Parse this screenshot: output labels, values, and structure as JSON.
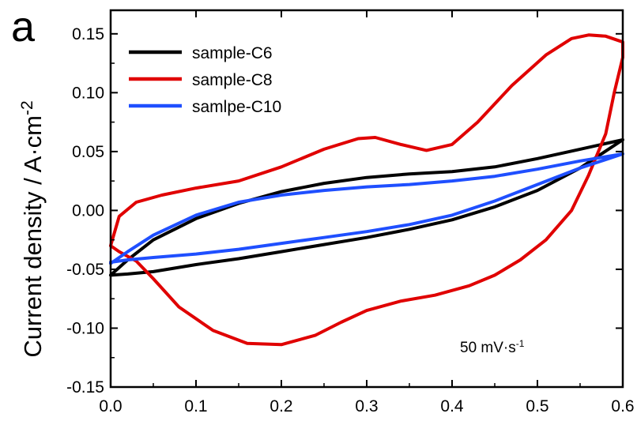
{
  "chart_data": {
    "type": "line",
    "panel_label": "a",
    "title": "",
    "xlabel": "",
    "ylabel": "Current density / A·cm",
    "ylabel_superscript": "-2",
    "xlim": [
      0.0,
      0.6
    ],
    "ylim": [
      -0.15,
      0.17
    ],
    "x_ticks": [
      0.0,
      0.1,
      0.2,
      0.3,
      0.4,
      0.5,
      0.6
    ],
    "x_tick_labels": [
      "0.0",
      "0.1",
      "0.2",
      "0.3",
      "0.4",
      "0.5",
      "0.6"
    ],
    "y_ticks": [
      -0.15,
      -0.1,
      -0.05,
      0.0,
      0.05,
      0.1,
      0.15
    ],
    "y_tick_labels": [
      "-0.15",
      "-0.10",
      "-0.05",
      "0.00",
      "0.05",
      "0.10",
      "0.15"
    ],
    "grid": false,
    "legend_position": "top-left",
    "annotation": {
      "text": "50 mV·s",
      "superscript": "-1"
    },
    "series": [
      {
        "name": "sample-C6",
        "color": "#000000",
        "x": [
          0.0,
          0.02,
          0.05,
          0.1,
          0.15,
          0.2,
          0.25,
          0.3,
          0.35,
          0.4,
          0.45,
          0.5,
          0.55,
          0.6,
          0.55,
          0.5,
          0.45,
          0.4,
          0.35,
          0.3,
          0.25,
          0.2,
          0.15,
          0.1,
          0.05,
          0.02,
          0.0
        ],
        "y": [
          -0.055,
          -0.042,
          -0.025,
          -0.007,
          0.006,
          0.016,
          0.023,
          0.028,
          0.031,
          0.033,
          0.037,
          0.044,
          0.052,
          0.06,
          0.036,
          0.017,
          0.003,
          -0.008,
          -0.016,
          -0.023,
          -0.029,
          -0.035,
          -0.041,
          -0.046,
          -0.052,
          -0.054,
          -0.055
        ]
      },
      {
        "name": "sample-C8",
        "color": "#e00000",
        "x": [
          0.0,
          0.01,
          0.03,
          0.06,
          0.1,
          0.15,
          0.2,
          0.25,
          0.29,
          0.31,
          0.34,
          0.37,
          0.4,
          0.43,
          0.47,
          0.51,
          0.54,
          0.56,
          0.58,
          0.6,
          0.6,
          0.59,
          0.58,
          0.56,
          0.54,
          0.51,
          0.48,
          0.45,
          0.42,
          0.38,
          0.34,
          0.3,
          0.27,
          0.24,
          0.2,
          0.16,
          0.12,
          0.08,
          0.05,
          0.03,
          0.01,
          0.0
        ],
        "y": [
          -0.03,
          -0.005,
          0.007,
          0.013,
          0.019,
          0.025,
          0.037,
          0.052,
          0.061,
          0.062,
          0.056,
          0.051,
          0.056,
          0.075,
          0.106,
          0.132,
          0.146,
          0.149,
          0.148,
          0.143,
          0.13,
          0.1,
          0.065,
          0.03,
          0.0,
          -0.025,
          -0.042,
          -0.055,
          -0.064,
          -0.072,
          -0.077,
          -0.085,
          -0.095,
          -0.106,
          -0.114,
          -0.113,
          -0.102,
          -0.082,
          -0.058,
          -0.043,
          -0.035,
          -0.03
        ]
      },
      {
        "name": "samlpe-C10",
        "color": "#1f4fff",
        "x": [
          0.0,
          0.02,
          0.05,
          0.1,
          0.15,
          0.2,
          0.25,
          0.3,
          0.35,
          0.4,
          0.45,
          0.5,
          0.55,
          0.6,
          0.55,
          0.5,
          0.45,
          0.4,
          0.35,
          0.3,
          0.25,
          0.2,
          0.15,
          0.1,
          0.05,
          0.02,
          0.0
        ],
        "y": [
          -0.045,
          -0.035,
          -0.021,
          -0.004,
          0.007,
          0.013,
          0.017,
          0.02,
          0.022,
          0.025,
          0.029,
          0.035,
          0.042,
          0.048,
          0.036,
          0.022,
          0.008,
          -0.004,
          -0.012,
          -0.018,
          -0.023,
          -0.028,
          -0.033,
          -0.037,
          -0.04,
          -0.042,
          -0.044
        ]
      }
    ]
  }
}
